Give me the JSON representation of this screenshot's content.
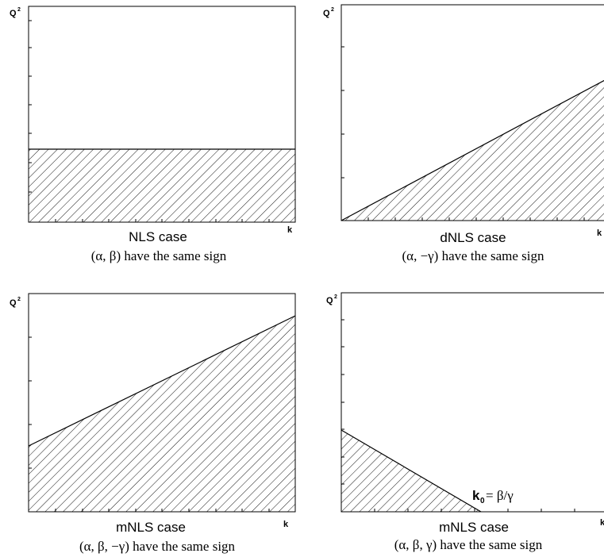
{
  "panels": [
    {
      "id": "nls",
      "y_axis_label": "Q",
      "y_axis_sup": "2",
      "x_axis_label": "k",
      "case_title": "NLS case",
      "caption": "(α, β)  have the same sign",
      "boundary": "horizontal line"
    },
    {
      "id": "dnls",
      "y_axis_label": "Q",
      "y_axis_sup": "2",
      "x_axis_label": "k",
      "case_title": "dNLS case",
      "caption": "(α, −γ)  have the same sign",
      "boundary": "line rising from origin"
    },
    {
      "id": "mnls-a",
      "y_axis_label": "Q",
      "y_axis_sup": "2",
      "x_axis_label": "k",
      "case_title": "mNLS case",
      "caption": "(α, β, −γ)  have the same sign",
      "boundary": "line with positive intercept and positive slope"
    },
    {
      "id": "mnls-b",
      "y_axis_label": "Q",
      "y_axis_sup": "2",
      "x_axis_label": "k",
      "case_title": "mNLS case",
      "caption": "(α, β, γ)  have the same sign",
      "boundary": "line with positive intercept decreasing to zero at k0",
      "k0_label_k": "k",
      "k0_label_sub": "0",
      "k0_label_rest": "= β/γ"
    }
  ],
  "colors": {
    "hatch": "#000000",
    "axes": "#000000",
    "background": "#ffffff"
  }
}
